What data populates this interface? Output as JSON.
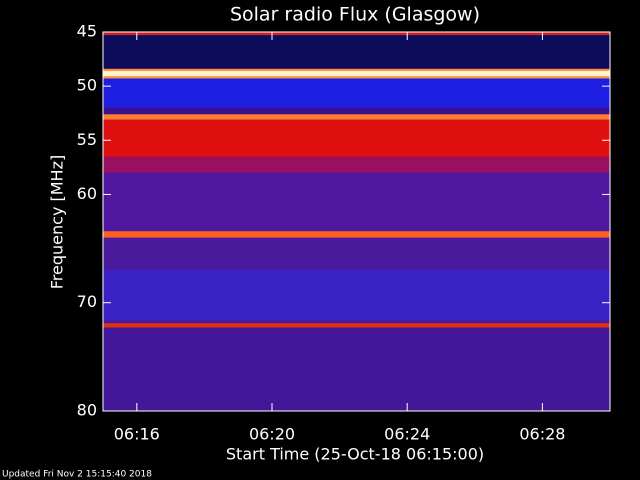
{
  "chart_data": {
    "type": "spectrogram",
    "title": "Solar radio Flux (Glasgow)",
    "x_label": "Start Time (25-Oct-18 06:15:00)",
    "y_label": "Frequency [MHz]",
    "footer": "Updated Fri Nov  2 15:15:40 2018",
    "xlim": [
      15,
      30
    ],
    "xticks": [
      {
        "value": 16,
        "label": "06:16"
      },
      {
        "value": 20,
        "label": "06:20"
      },
      {
        "value": 24,
        "label": "06:24"
      },
      {
        "value": 28,
        "label": "06:28"
      }
    ],
    "ylim": [
      45,
      80
    ],
    "y_inverted": true,
    "yticks": [
      45,
      50,
      55,
      60,
      70,
      80
    ],
    "bands": [
      {
        "from": 45,
        "to": 80,
        "color": "#4a1a9c"
      },
      {
        "from": 45,
        "to": 45.3,
        "color": "#d02020"
      },
      {
        "from": 45.3,
        "to": 48.4,
        "color": "#0c0c5a"
      },
      {
        "from": 48.4,
        "to": 48.6,
        "color": "#ff9040"
      },
      {
        "from": 48.6,
        "to": 49.1,
        "color": "#fff4c8"
      },
      {
        "from": 49.1,
        "to": 49.3,
        "color": "#ff9040"
      },
      {
        "from": 49.3,
        "to": 52,
        "color": "#1e1ee0"
      },
      {
        "from": 52,
        "to": 52.6,
        "color": "#3a1090"
      },
      {
        "from": 52.6,
        "to": 53.1,
        "color": "#ff8030"
      },
      {
        "from": 53.1,
        "to": 56.5,
        "color": "#e01010"
      },
      {
        "from": 56.5,
        "to": 58,
        "color": "#9a1060"
      },
      {
        "from": 58,
        "to": 63.4,
        "color": "#5018a0"
      },
      {
        "from": 63.4,
        "to": 64,
        "color": "#ff6020"
      },
      {
        "from": 64,
        "to": 67,
        "color": "#4a1a9c"
      },
      {
        "from": 67,
        "to": 71.6,
        "color": "#3a22c4"
      },
      {
        "from": 71.9,
        "to": 72.3,
        "color": "#e03010"
      },
      {
        "from": 72.3,
        "to": 80,
        "color": "#44169a"
      }
    ]
  }
}
